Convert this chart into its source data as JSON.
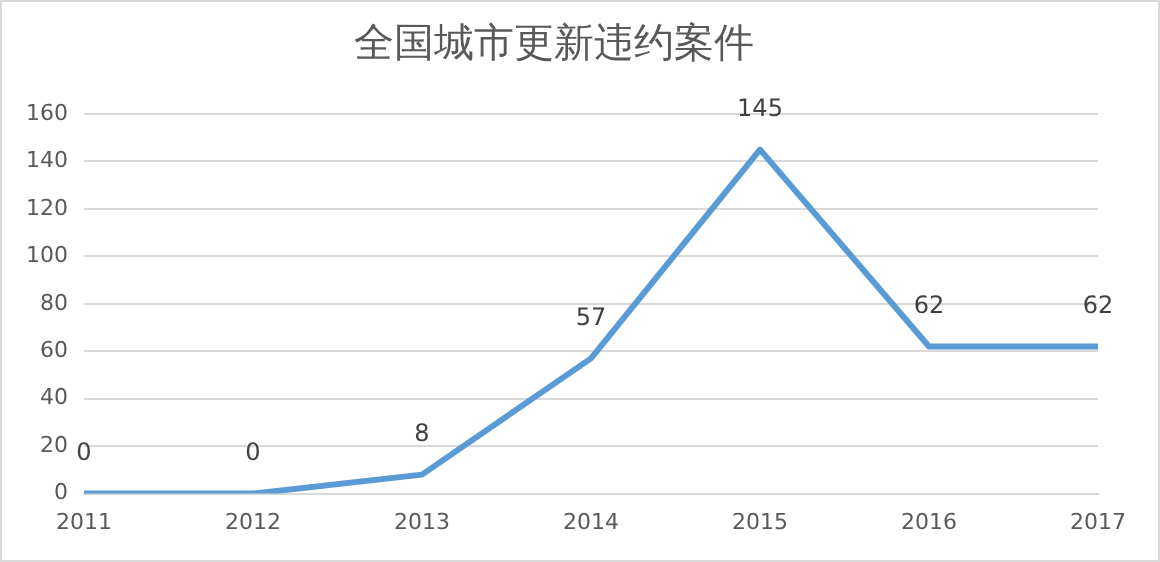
{
  "chart_data": {
    "type": "line",
    "title": "全国城市更新违约案件",
    "categories": [
      "2011",
      "2012",
      "2013",
      "2014",
      "2015",
      "2016",
      "2017"
    ],
    "series": [
      {
        "color": "#5b9bd5",
        "values": [
          0,
          0,
          8,
          57,
          145,
          62,
          62
        ]
      }
    ],
    "ylim": [
      0,
      160
    ],
    "yticks": [
      0,
      20,
      40,
      60,
      80,
      100,
      120,
      140,
      160
    ],
    "grid": "y",
    "legend": false,
    "marker": "none",
    "data_labels": true
  }
}
